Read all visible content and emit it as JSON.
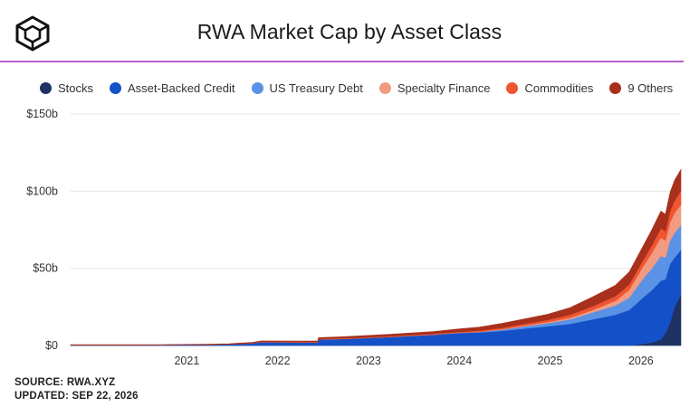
{
  "title": "RWA Market Cap by Asset Class",
  "footer": {
    "source": "SOURCE: RWA.XYZ",
    "updated": "UPDATED: SEP 22, 2026"
  },
  "chart_data": {
    "type": "area",
    "stacked": true,
    "x_tick_labels": [
      "2021",
      "2022",
      "2023",
      "2024",
      "2025",
      "2026"
    ],
    "y_tick_labels": [
      "$0",
      "$50b",
      "$100b",
      "$150b"
    ],
    "ylim": [
      0,
      150
    ],
    "y_unit": "billions USD",
    "x_range": [
      2020.0,
      2026.72
    ],
    "grid": true,
    "legend_position": "top",
    "x": [
      2020.0,
      2021.0,
      2021.5,
      2021.75,
      2022.0,
      2022.1,
      2022.5,
      2022.72,
      2022.73,
      2023.0,
      2023.5,
      2024.0,
      2024.25,
      2024.5,
      2024.75,
      2025.0,
      2025.25,
      2025.5,
      2025.75,
      2026.0,
      2026.15,
      2026.3,
      2026.4,
      2026.5,
      2026.55,
      2026.6,
      2026.65,
      2026.72
    ],
    "series": [
      {
        "name": "Stocks",
        "color": "#1f3264",
        "values": [
          0,
          0,
          0,
          0,
          0,
          0,
          0,
          0,
          0,
          0,
          0,
          0,
          0,
          0,
          0,
          0,
          0,
          0,
          0,
          0,
          0,
          1,
          2,
          4,
          8,
          15,
          25,
          33
        ]
      },
      {
        "name": "Asset-Backed Credit",
        "color": "#1451c8",
        "values": [
          0.3,
          0.4,
          0.5,
          0.8,
          1.5,
          2.2,
          2.0,
          2.0,
          4.0,
          4.3,
          5.5,
          7.0,
          8.0,
          8.5,
          9.5,
          11.0,
          12.5,
          14.0,
          17.0,
          20.0,
          23.0,
          30.0,
          34.0,
          38.0,
          35.0,
          38.0,
          32.0,
          29.0
        ]
      },
      {
        "name": "US Treasury Debt",
        "color": "#5a92e6",
        "values": [
          0,
          0,
          0,
          0,
          0,
          0,
          0,
          0,
          0,
          0,
          0,
          0.1,
          0.2,
          0.3,
          0.8,
          1.5,
          2.0,
          3.0,
          4.5,
          6.0,
          8.0,
          12.0,
          14.0,
          16.0,
          14.0,
          15.0,
          16.0,
          16.0
        ]
      },
      {
        "name": "Specialty Finance",
        "color": "#f29a82",
        "values": [
          0,
          0,
          0,
          0,
          0,
          0,
          0,
          0,
          0,
          0,
          0,
          0,
          0,
          0.1,
          0.2,
          0.4,
          0.6,
          1.0,
          1.5,
          3.0,
          5.0,
          8.0,
          10.0,
          12.0,
          11.0,
          12.0,
          13.0,
          13.0
        ]
      },
      {
        "name": "Commodities",
        "color": "#ef5530",
        "values": [
          0,
          0,
          0,
          0,
          0,
          0.2,
          0.3,
          0.3,
          0.3,
          0.4,
          0.5,
          0.5,
          0.6,
          0.8,
          1.0,
          1.2,
          1.5,
          2.0,
          2.5,
          3.0,
          3.5,
          4.0,
          5.0,
          6.0,
          6.0,
          7.0,
          8.0,
          9.0
        ]
      },
      {
        "name": "9 Others",
        "color": "#a8301c",
        "values": [
          0.2,
          0.2,
          0.3,
          0.4,
          0.5,
          0.6,
          0.6,
          0.7,
          0.8,
          1.0,
          1.2,
          1.5,
          1.8,
          2.2,
          2.8,
          3.2,
          3.6,
          4.5,
          6.0,
          7.0,
          8.0,
          9.0,
          10.0,
          11.0,
          11.0,
          12.0,
          13.0,
          14.0
        ]
      }
    ]
  }
}
